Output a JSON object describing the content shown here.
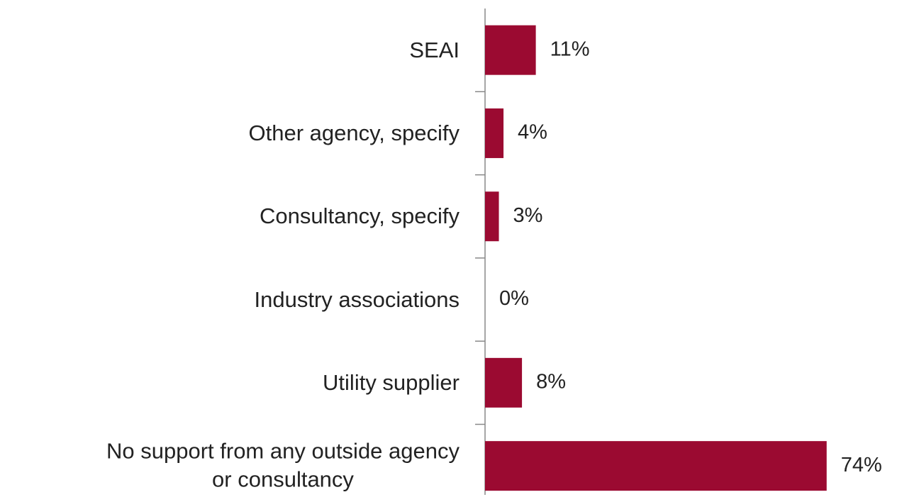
{
  "chart_data": {
    "type": "hbar",
    "categories": [
      "SEAI",
      "Other agency, specify",
      "Consultancy, specify",
      "Industry associations",
      "Utility supplier",
      "No support from any outside agency\nor consultancy"
    ],
    "values": [
      11,
      4,
      3,
      0,
      8,
      74
    ],
    "value_labels": [
      "11%",
      "4%",
      "3%",
      "0%",
      "8%",
      "74%"
    ],
    "color": "#9b0a31"
  }
}
